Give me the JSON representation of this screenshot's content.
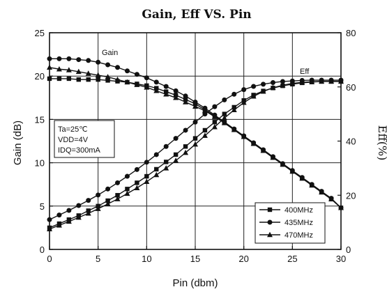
{
  "chart_data": {
    "type": "line",
    "title": "Gain, Eff VS. Pin",
    "xlabel": "Pin (dbm)",
    "ylabel_left": "Gain (dB)",
    "ylabel_right": "Eff(%)",
    "xlim": [
      0,
      30
    ],
    "ylim_left": [
      0,
      25
    ],
    "ylim_right": [
      0,
      80
    ],
    "x_ticks": [
      "0",
      "5",
      "10",
      "15",
      "20",
      "25",
      "30"
    ],
    "y_left_ticks": [
      "0",
      "5",
      "10",
      "15",
      "20",
      "25"
    ],
    "y_right_ticks": [
      "0",
      "20",
      "40",
      "60",
      "80"
    ],
    "grid": true,
    "legend_position": "bottom-right",
    "annotations": {
      "gain_label": "Gain",
      "eff_label": "Eff",
      "conditions": [
        "Ta=25℃",
        "VDD=4V",
        "IDQ=300mA"
      ]
    },
    "x": [
      0,
      1,
      2,
      3,
      4,
      5,
      6,
      7,
      8,
      9,
      10,
      11,
      12,
      13,
      14,
      15,
      16,
      17,
      18,
      19,
      20,
      21,
      22,
      23,
      24,
      25,
      26,
      27,
      28,
      29,
      30
    ],
    "series": [
      {
        "name": "400MHz",
        "marker": "square",
        "gain": [
          19.7,
          19.7,
          19.7,
          19.6,
          19.6,
          19.6,
          19.5,
          19.4,
          19.3,
          19.1,
          18.9,
          18.6,
          18.2,
          17.8,
          17.3,
          16.8,
          16.1,
          15.4,
          14.6,
          13.8,
          13.0,
          12.2,
          11.4,
          10.6,
          9.8,
          9.0,
          8.2,
          7.4,
          6.6,
          5.8,
          4.8
        ],
        "eff": [
          8.0,
          9.5,
          11.0,
          12.5,
          14.3,
          16.0,
          18.0,
          20.0,
          22.3,
          24.6,
          27.0,
          29.6,
          32.3,
          35.0,
          38.0,
          41.0,
          44.0,
          47.0,
          50.0,
          52.5,
          55.0,
          57.0,
          58.5,
          59.6,
          60.4,
          61.0,
          61.5,
          61.8,
          62.0,
          62.0,
          62.0
        ]
      },
      {
        "name": "435MHz",
        "marker": "circle",
        "gain": [
          22.0,
          22.0,
          22.0,
          21.9,
          21.8,
          21.6,
          21.3,
          21.0,
          20.6,
          20.2,
          19.8,
          19.3,
          18.8,
          18.3,
          17.7,
          17.0,
          16.3,
          15.5,
          14.7,
          13.9,
          13.1,
          12.3,
          11.5,
          10.7,
          9.9,
          9.1,
          8.3,
          7.5,
          6.7,
          5.9,
          4.8
        ],
        "eff": [
          11.0,
          12.7,
          14.4,
          16.2,
          18.1,
          20.1,
          22.3,
          24.6,
          27.0,
          29.5,
          32.2,
          35.0,
          38.0,
          41.0,
          44.0,
          47.0,
          50.0,
          52.7,
          55.2,
          57.3,
          59.0,
          60.2,
          61.0,
          61.6,
          62.0,
          62.2,
          62.4,
          62.5,
          62.5,
          62.5,
          62.5
        ]
      },
      {
        "name": "470MHz",
        "marker": "triangle",
        "gain": [
          21.0,
          20.8,
          20.7,
          20.5,
          20.3,
          20.1,
          19.9,
          19.6,
          19.3,
          19.0,
          18.7,
          18.3,
          17.9,
          17.5,
          17.0,
          16.5,
          16.0,
          15.3,
          14.6,
          13.8,
          13.0,
          12.2,
          11.4,
          10.6,
          9.8,
          9.0,
          8.2,
          7.4,
          6.6,
          5.8,
          4.8
        ],
        "eff": [
          7.5,
          8.9,
          10.3,
          11.8,
          13.3,
          15.0,
          16.8,
          18.6,
          20.6,
          22.7,
          25.0,
          27.5,
          30.0,
          32.8,
          35.7,
          38.8,
          42.0,
          45.2,
          48.5,
          51.5,
          54.2,
          56.5,
          58.3,
          59.7,
          60.6,
          61.3,
          61.7,
          61.9,
          62.0,
          62.0,
          62.0
        ]
      }
    ]
  }
}
